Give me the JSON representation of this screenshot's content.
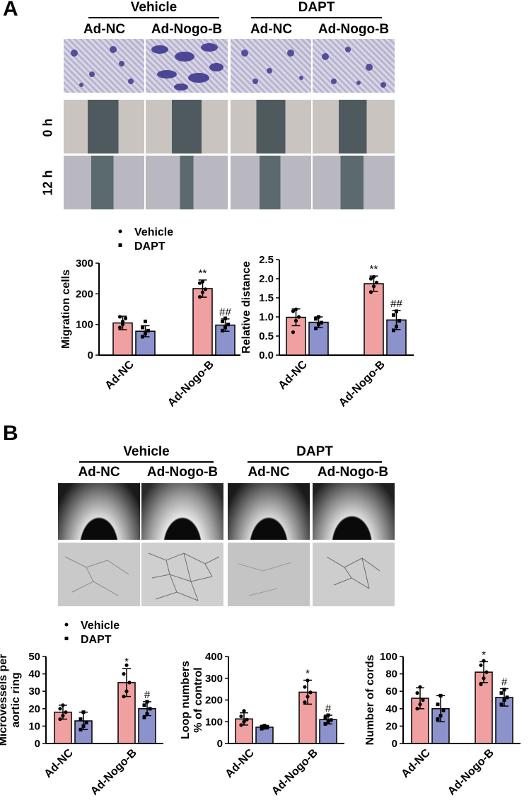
{
  "panel_a": {
    "letter": "A",
    "groups": [
      "Vehicle",
      "DAPT"
    ],
    "columns": [
      "Ad-NC",
      "Ad-Nogo-B",
      "Ad-NC",
      "Ad-Nogo-B"
    ],
    "row_labels": [
      "0 h",
      "12 h"
    ]
  },
  "panel_b": {
    "letter": "B",
    "groups": [
      "Vehicle",
      "DAPT"
    ],
    "columns": [
      "Ad-NC",
      "Ad-Nogo-B",
      "Ad-NC",
      "Ad-Nogo-B"
    ]
  },
  "legend": {
    "items": [
      "Vehicle",
      "DAPT"
    ]
  },
  "colors": {
    "vehicle": "#f0a0a0",
    "dapt": "#8c92cc",
    "stroke": "#000000"
  },
  "chart_data": [
    {
      "type": "bar",
      "categories": [
        "Ad-NC",
        "Ad-Nogo-B"
      ],
      "series": [
        {
          "name": "Vehicle",
          "values": [
            105,
            217
          ],
          "err": [
            22,
            28
          ],
          "annot": [
            "",
            "**"
          ],
          "points": [
            [
              90,
              100,
              120,
              125,
              110
            ],
            [
              190,
              205,
              215,
              235,
              240
            ]
          ]
        },
        {
          "name": "DAPT",
          "values": [
            78,
            98
          ],
          "err": [
            18,
            20
          ],
          "annot": [
            "",
            "##"
          ],
          "points": [
            [
              60,
              70,
              80,
              90,
              110
            ],
            [
              80,
              90,
              100,
              110,
              120
            ]
          ]
        }
      ],
      "ylabel": "Migration cells",
      "ylim": [
        0,
        300
      ],
      "yticks": [
        0,
        100,
        200,
        300
      ]
    },
    {
      "type": "bar",
      "categories": [
        "Ad-NC",
        "Ad-Nogo-B"
      ],
      "series": [
        {
          "name": "Vehicle",
          "values": [
            0.99,
            1.87
          ],
          "err": [
            0.22,
            0.2
          ],
          "annot": [
            "",
            "**"
          ],
          "points": [
            [
              0.6,
              0.9,
              1.0,
              1.15,
              1.2
            ],
            [
              1.65,
              1.8,
              1.9,
              2.0,
              2.05
            ]
          ]
        },
        {
          "name": "DAPT",
          "values": [
            0.86,
            0.92
          ],
          "err": [
            0.14,
            0.25
          ],
          "annot": [
            "",
            "##"
          ],
          "points": [
            [
              0.7,
              0.8,
              0.85,
              0.95,
              1.0
            ],
            [
              0.65,
              0.75,
              0.9,
              1.05,
              1.15
            ]
          ]
        }
      ],
      "ylabel": "Relative distance",
      "ylim": [
        0,
        2.5
      ],
      "yticks": [
        0.0,
        0.5,
        1.0,
        1.5,
        2.0,
        2.5
      ]
    },
    {
      "type": "bar",
      "categories": [
        "Ad-NC",
        "Ad-Nogo-B"
      ],
      "series": [
        {
          "name": "Vehicle",
          "values": [
            18,
            35
          ],
          "err": [
            4,
            8
          ],
          "annot": [
            "",
            "*"
          ],
          "points": [
            [
              14,
              16,
              18,
              20,
              22
            ],
            [
              27,
              30,
              35,
              40,
              45
            ]
          ]
        },
        {
          "name": "DAPT",
          "values": [
            13,
            20
          ],
          "err": [
            5,
            4
          ],
          "annot": [
            "",
            "#"
          ],
          "points": [
            [
              8,
              10,
              12,
              14,
              18
            ],
            [
              15,
              17,
              20,
              22,
              24
            ]
          ]
        }
      ],
      "ylabel": "Microvessels per aortic ring",
      "ylim": [
        0,
        50
      ],
      "yticks": [
        0,
        10,
        20,
        30,
        40,
        50
      ]
    },
    {
      "type": "bar",
      "categories": [
        "Ad-NC",
        "Ad-Nogo-B"
      ],
      "series": [
        {
          "name": "Vehicle",
          "values": [
            113,
            236
          ],
          "err": [
            28,
            55
          ],
          "annot": [
            "",
            "*"
          ],
          "points": [
            [
              85,
              100,
              110,
              125,
              150
            ],
            [
              190,
              215,
              235,
              260,
              290
            ]
          ]
        },
        {
          "name": "DAPT",
          "values": [
            75,
            110
          ],
          "err": [
            8,
            20
          ],
          "annot": [
            "",
            "#"
          ],
          "points": [
            [
              68,
              72,
              75,
              78,
              82
            ],
            [
              90,
              100,
              108,
              120,
              130
            ]
          ]
        }
      ],
      "ylabel": "Loop numbers % of control",
      "ylim": [
        0,
        400
      ],
      "yticks": [
        0,
        100,
        200,
        300,
        400
      ]
    },
    {
      "type": "bar",
      "categories": [
        "Ad-NC",
        "Ad-Nogo-B"
      ],
      "series": [
        {
          "name": "Vehicle",
          "values": [
            52,
            82
          ],
          "err": [
            12,
            12
          ],
          "annot": [
            "",
            "*"
          ],
          "points": [
            [
              40,
              45,
              50,
              58,
              65
            ],
            [
              68,
              75,
              82,
              90,
              95
            ]
          ]
        },
        {
          "name": "DAPT",
          "values": [
            40,
            53
          ],
          "err": [
            15,
            10
          ],
          "annot": [
            "",
            "#"
          ],
          "points": [
            [
              28,
              32,
              38,
              45,
              55
            ],
            [
              45,
              50,
              53,
              58,
              62
            ]
          ]
        }
      ],
      "ylabel": "Number of cords",
      "ylim": [
        0,
        100
      ],
      "yticks": [
        0,
        20,
        40,
        60,
        80,
        100
      ]
    }
  ]
}
